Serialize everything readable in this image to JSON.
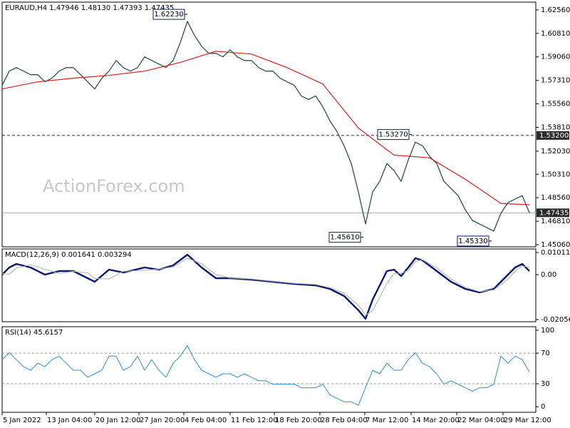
{
  "chart_data": [
    {
      "type": "line",
      "title": "EURAUD,H4  1.47946 1.48130 1.47393 1.47435",
      "watermark": "ActionForex.com",
      "ylim": [
        1.449,
        1.6314
      ],
      "xlim": [
        0,
        74.9
      ],
      "yticks": [
        {
          "value": 1.6256,
          "label": "1.62560"
        },
        {
          "value": 1.6081,
          "label": "1.60810"
        },
        {
          "value": 1.5906,
          "label": "1.59060"
        },
        {
          "value": 1.5731,
          "label": "1.57310"
        },
        {
          "value": 1.5556,
          "label": "1.55560"
        },
        {
          "value": 1.5381,
          "label": "1.53810"
        },
        {
          "value": 1.5203,
          "label": "1.52030"
        },
        {
          "value": 1.5031,
          "label": "1.50310"
        },
        {
          "value": 1.4856,
          "label": "1.48560"
        },
        {
          "value": 1.4681,
          "label": "1.46810"
        },
        {
          "value": 1.4506,
          "label": "1.45060"
        }
      ],
      "series": [
        {
          "name": "EURAUD",
          "color": "#2f4f4f",
          "width": 1.3,
          "values": [
            1.5694,
            1.58,
            1.5826,
            1.58,
            1.5773,
            1.5773,
            1.572,
            1.5747,
            1.58,
            1.5826,
            1.5826,
            1.5773,
            1.572,
            1.5667,
            1.5747,
            1.58,
            1.5879,
            1.5826,
            1.58,
            1.5826,
            1.5906,
            1.5879,
            1.5853,
            1.5826,
            1.5879,
            1.6012,
            1.6171,
            1.6065,
            1.5985,
            1.5932,
            1.5932,
            1.5906,
            1.5959,
            1.5906,
            1.5879,
            1.5879,
            1.5826,
            1.58,
            1.58,
            1.5747,
            1.572,
            1.5694,
            1.5614,
            1.5588,
            1.5614,
            1.5535,
            1.5429,
            1.5349,
            1.5243,
            1.5111,
            1.4899,
            1.466,
            1.4899,
            1.4978,
            1.5111,
            1.5058,
            1.4978,
            1.5137,
            1.527,
            1.5243,
            1.5164,
            1.5111,
            1.4978,
            1.4925,
            1.4872,
            1.4766,
            1.4687,
            1.466,
            1.4634,
            1.4607,
            1.474,
            1.4819,
            1.4846,
            1.4872,
            1.4743
          ]
        },
        {
          "name": "MA",
          "color": "#d62020",
          "width": 1.2,
          "x": [
            0,
            5,
            10,
            15,
            20,
            25,
            30,
            35,
            40,
            45,
            50,
            55,
            60,
            65,
            70,
            74
          ],
          "values": [
            1.5667,
            1.572,
            1.5747,
            1.5768,
            1.58,
            1.5864,
            1.5948,
            1.5927,
            1.5826,
            1.5704,
            1.5376,
            1.5174,
            1.5153,
            1.4994,
            1.4814,
            1.4803
          ]
        }
      ],
      "hlines": [
        {
          "value": 1.532,
          "label": "1.53200",
          "style": "dashed",
          "color": "#333333"
        },
        {
          "value": 1.47435,
          "label": "1.47435",
          "style": "solid",
          "color": "#aaaaaa"
        }
      ],
      "annotations": [
        {
          "label": "1.62230",
          "value": 1.6223,
          "x": 26
        },
        {
          "label": "1.53270",
          "value": 1.5327,
          "x": 57.5
        },
        {
          "label": "1.45610",
          "value": 1.4561,
          "x": 50.7
        },
        {
          "label": "1.45330",
          "value": 1.4533,
          "x": 68.7
        }
      ]
    },
    {
      "type": "line",
      "title": "MACD(12,26,9) 0.001641 0.003294",
      "ylim": [
        -0.02154,
        0.01174
      ],
      "xlim": [
        0,
        74.9
      ],
      "yticks": [
        0.010113,
        {
          "value": 0,
          "label": "0.00"
        },
        -0.020561
      ],
      "series": [
        {
          "name": "MACD",
          "color": "#0a1a6e",
          "width": 2.4,
          "x": [
            0,
            1,
            2,
            4,
            6,
            8,
            10,
            12,
            13,
            15,
            17,
            20,
            22,
            24,
            26,
            28,
            30,
            32,
            35,
            38,
            41,
            44,
            46,
            48,
            50,
            51,
            52,
            54,
            55,
            56,
            57,
            58,
            59,
            61,
            63,
            65,
            67,
            69,
            71,
            72,
            73,
            74
          ],
          "values": [
            0,
            0.00326,
            0.00489,
            0.00326,
            0,
            0.00163,
            0.00163,
            -0.00163,
            -0.00326,
            0.00228,
            0.00098,
            0.00326,
            0.00228,
            0.00424,
            0.00913,
            0.00326,
            -0.00163,
            -0.00163,
            -0.00228,
            -0.00326,
            -0.00424,
            -0.00489,
            -0.00652,
            -0.00978,
            -0.0163,
            -0.02021,
            -0.01141,
            0.00163,
            0.00228,
            -0.00065,
            0.00326,
            0.0075,
            0.00652,
            0.00163,
            -0.00326,
            -0.00652,
            -0.00815,
            -0.00652,
            0,
            0.00326,
            0.00489,
            0.00164
          ]
        },
        {
          "name": "Signal",
          "color": "#b0b0b0",
          "width": 1,
          "x": [
            0,
            1,
            2,
            4,
            6,
            8,
            10,
            12,
            13,
            15,
            17,
            20,
            22,
            24,
            26,
            28,
            30,
            32,
            35,
            38,
            41,
            44,
            46,
            48,
            50,
            51,
            52,
            54,
            55,
            56,
            57,
            58,
            59,
            61,
            63,
            65,
            67,
            69,
            71,
            72,
            73,
            74
          ],
          "values": [
            0.0005,
            0.0002,
            0.003,
            0.0045,
            0.0025,
            0.0005,
            0.0015,
            0.0008,
            -0.0018,
            -0.002,
            0.0015,
            0.002,
            0.0025,
            0.0035,
            0.0075,
            0.005,
            0,
            -0.0015,
            -0.002,
            -0.003,
            -0.004,
            -0.0045,
            -0.006,
            -0.0085,
            -0.014,
            -0.0185,
            -0.0165,
            -0.004,
            0.0005,
            0.0005,
            0.002,
            0.006,
            0.0068,
            0.003,
            -0.002,
            -0.0058,
            -0.0078,
            -0.007,
            -0.002,
            0.0015,
            0.004,
            0.00329
          ]
        }
      ]
    },
    {
      "type": "line",
      "title": "RSI(14) 45.6157",
      "ylim": [
        -7.3,
        104.6
      ],
      "xlim": [
        0,
        74.9
      ],
      "yticks": [
        100,
        70,
        30,
        0
      ],
      "levels": [
        70,
        30
      ],
      "xticks": [
        {
          "value": 0,
          "label": "5 Jan 2022"
        },
        {
          "value": 6.2,
          "label": "13 Jan 04:00"
        },
        {
          "value": 13,
          "label": "20 Jan 12:00"
        },
        {
          "value": 19.2,
          "label": "27 Jan 20:00"
        },
        {
          "value": 25.5,
          "label": "4 Feb 04:00"
        },
        {
          "value": 32,
          "label": "11 Feb 12:00"
        },
        {
          "value": 38.2,
          "label": "18 Feb 20:00"
        },
        {
          "value": 44.6,
          "label": "28 Feb 04:00"
        },
        {
          "value": 50.9,
          "label": "7 Mar 12:00"
        },
        {
          "value": 57.4,
          "label": "14 Mar 20:00"
        },
        {
          "value": 63.8,
          "label": "22 Mar 04:00"
        },
        {
          "value": 70.3,
          "label": "29 Mar 12:00"
        }
      ],
      "series": [
        {
          "name": "RSI",
          "color": "#2f8fe0",
          "width": 1,
          "values": [
            61.5,
            70.6,
            61.5,
            52.3,
            47.7,
            56.9,
            52.3,
            61.5,
            66.1,
            56.9,
            47.7,
            47.7,
            38.5,
            43.1,
            47.7,
            66.1,
            66.1,
            47.7,
            52.3,
            66.1,
            47.7,
            61.5,
            47.7,
            38.5,
            56.9,
            66.1,
            79.8,
            61.5,
            47.7,
            43.1,
            38.5,
            43.1,
            43.1,
            38.5,
            43.1,
            38.5,
            33.9,
            33.9,
            29.4,
            29.4,
            29.4,
            29.4,
            24.8,
            24.8,
            24.8,
            29.4,
            15.6,
            11.0,
            6.4,
            6.4,
            1.8,
            24.8,
            47.7,
            43.1,
            56.9,
            47.7,
            47.7,
            61.5,
            70.6,
            56.9,
            52.3,
            43.1,
            29.4,
            33.9,
            29.4,
            24.8,
            20.2,
            24.8,
            24.8,
            29.4,
            66.1,
            56.9,
            66.1,
            61.5,
            45.6
          ]
        }
      ]
    }
  ]
}
